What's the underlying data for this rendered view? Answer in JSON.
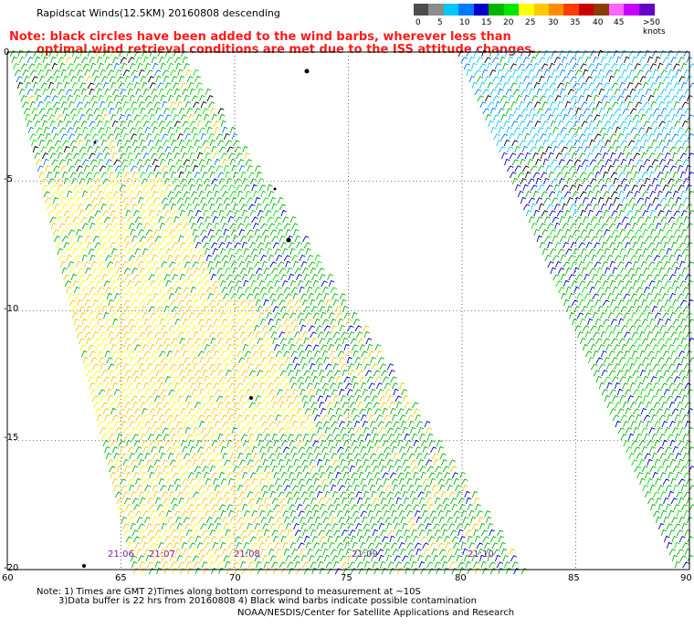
{
  "title": "Rapidscat Winds(12.5KM) 20160808 descending",
  "note": {
    "line1": "Note: black circles have been added to the wind barbs, wherever less than",
    "line2": "optimal wind retrieval conditions are met due to the ISS attitude changes."
  },
  "legend": {
    "unit": "knots",
    "labels": [
      "0",
      "5",
      "10",
      "15",
      "20",
      "25",
      "30",
      "35",
      "40",
      "45",
      ">50 knots"
    ],
    "colors": [
      "#4d4d4d",
      "#8c8c8c",
      "#00c8ff",
      "#0078ff",
      "#0000c8",
      "#00b400",
      "#00e600",
      "#ffff00",
      "#ffc800",
      "#ff8c00",
      "#ff3c00",
      "#c80000",
      "#8c3c00",
      "#ff64ff",
      "#c800ff",
      "#6400c8"
    ]
  },
  "map": {
    "lat_labels": [
      "0",
      "-5",
      "-10",
      "-15",
      "-20"
    ],
    "lon_labels": [
      "60",
      "65",
      "70",
      "75",
      "80",
      "85",
      "90"
    ],
    "lat_range": [
      -20,
      0
    ],
    "lon_range": [
      60,
      90
    ],
    "time_labels": [
      "21:06",
      "21:07",
      "21:08",
      "21:09",
      "21:10"
    ],
    "grid": true
  },
  "footer": {
    "line1": "Note: 1) Times are GMT 2)Times along bottom correspond to measurement at ~10S",
    "line2": "3)Data buffer is 22 hrs from 20160808 4) Black wind barbs indicate possible contamination",
    "line3": "NOAA/NESDIS/Center for Satellite Applications and Research"
  }
}
